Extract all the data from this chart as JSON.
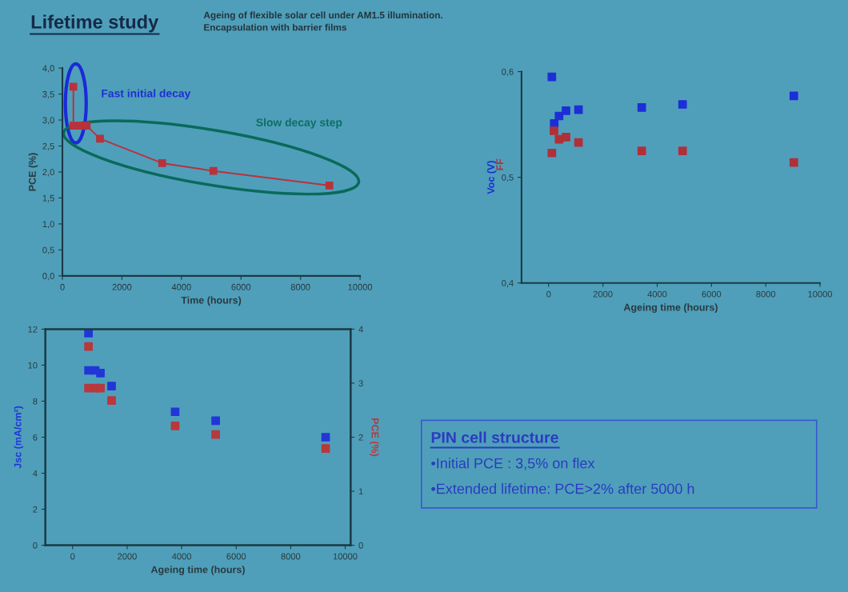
{
  "chart_data": [
    {
      "type": "line",
      "title": "Lifetime study",
      "subtitle": "Ageing of flexible solar cell under AM1.5 illumination.\nEncapsulation with barrier films",
      "xlabel": "Time (hours)",
      "ylabel": "PCE (%)",
      "marker": "square",
      "line_style": "solid",
      "xlim": [
        0,
        10000
      ],
      "xticks": [
        0,
        2000,
        4000,
        6000,
        8000,
        10000
      ],
      "ylim": [
        0,
        4
      ],
      "yticks": [
        {
          "value": 0,
          "label": "0,0"
        },
        {
          "value": 0.5,
          "label": "0,5"
        },
        {
          "value": 1,
          "label": "1,0"
        },
        {
          "value": 1.5,
          "label": "1,5"
        },
        {
          "value": 2,
          "label": "2,0"
        },
        {
          "value": 2.5,
          "label": "2,5"
        },
        {
          "value": 3,
          "label": "3,0"
        },
        {
          "value": 3.5,
          "label": "3,5"
        },
        {
          "value": 4,
          "label": "4,0"
        }
      ],
      "series": [
        {
          "color": "#b8323c",
          "x": [
            368,
            368,
            591,
            815,
            1263,
            3352,
            5073,
            8970
          ],
          "values": [
            3.64,
            2.89,
            2.89,
            2.89,
            2.64,
            2.17,
            2.02,
            1.74
          ]
        }
      ],
      "annotations": [
        "Fast initial decay",
        "Slow decay step"
      ]
    },
    {
      "type": "scatter",
      "xlabel": "Ageing time (hours)",
      "marker": "square",
      "xlim": [
        -1000,
        10000
      ],
      "xticks": [
        0,
        2000,
        4000,
        6000,
        8000,
        10000
      ],
      "ylim": [
        0.4,
        0.6
      ],
      "yticks": [
        {
          "value": 0.4,
          "label": "0,4"
        },
        {
          "value": 0.5,
          "label": "0,5"
        },
        {
          "value": 0.6,
          "label": "0,6"
        }
      ],
      "series": [
        {
          "name": "Voc (V)",
          "color": "#1c2fd6",
          "x": [
            118,
            206,
            383,
            640,
            1100,
            3431,
            4935,
            9035
          ],
          "values": [
            0.595,
            0.551,
            0.558,
            0.563,
            0.564,
            0.566,
            0.569,
            0.577
          ]
        },
        {
          "name": "FF",
          "color": "#b0303a",
          "x": [
            118,
            197,
            383,
            640,
            1100,
            3431,
            4935,
            9035
          ],
          "values": [
            0.523,
            0.544,
            0.536,
            0.538,
            0.533,
            0.525,
            0.525,
            0.514
          ]
        }
      ]
    },
    {
      "type": "scatter",
      "xlabel": "Ageing time (hours)",
      "ylabel": "Jsc (mA/cm²)",
      "y2label": "PCE (%)",
      "marker": "square",
      "xlim": [
        -1000,
        10200
      ],
      "xticks": [
        0,
        2000,
        4000,
        6000,
        8000,
        10000
      ],
      "ylim": [
        0,
        12
      ],
      "yticks": [
        0,
        2,
        4,
        6,
        8,
        10,
        12
      ],
      "y2lim": [
        0,
        4
      ],
      "y2ticks": [
        0,
        1,
        2,
        3,
        4
      ],
      "series": [
        {
          "color": "#2236d8",
          "x": [
            583,
            583,
            828,
            1020,
            1429,
            3761,
            5248,
            9283
          ],
          "values": [
            11.78,
            9.71,
            9.71,
            9.56,
            8.84,
            7.41,
            6.92,
            6.0
          ]
        },
        {
          "color": "#b8383c",
          "axis": "y2",
          "x": [
            583,
            583,
            828,
            1020,
            1429,
            3761,
            5248,
            9283
          ],
          "values": [
            3.68,
            2.91,
            2.91,
            2.91,
            2.68,
            2.21,
            2.05,
            1.79
          ]
        }
      ]
    },
    {
      "type": "other",
      "annotations": [
        "PIN cell structure",
        "•Initial PCE : 3,5% on flex",
        "•Extended lifetime: PCE>2% after 5000 h"
      ]
    }
  ]
}
